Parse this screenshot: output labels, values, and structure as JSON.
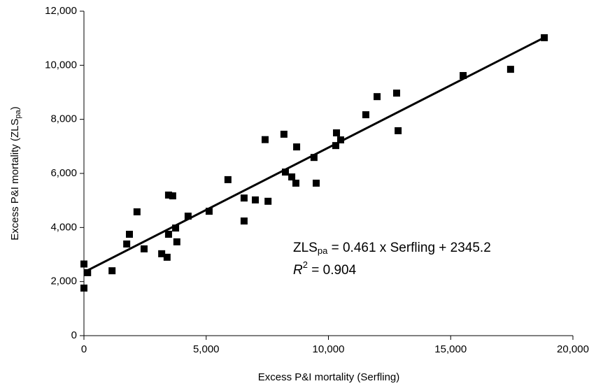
{
  "chart_data": {
    "type": "scatter",
    "x_label": "Excess P&I mortality (Serfling)",
    "y_label": {
      "main": "Excess P&I mortality (ZLS",
      "sub": "pa",
      "end": ")"
    },
    "x": [
      0,
      0,
      150,
      1150,
      1750,
      1860,
      2170,
      2460,
      3180,
      3400,
      3460,
      3460,
      3630,
      3750,
      3800,
      4260,
      5120,
      5890,
      6550,
      6550,
      7010,
      7410,
      7530,
      8180,
      8240,
      8500,
      8700,
      8670,
      9410,
      9500,
      10300,
      10330,
      10500,
      11530,
      11990,
      12790,
      12850,
      15510,
      17450,
      18830
    ],
    "values": [
      2650,
      1760,
      2330,
      2400,
      3390,
      3750,
      4580,
      3210,
      3030,
      2900,
      3750,
      5200,
      5170,
      3980,
      3470,
      4420,
      4600,
      5770,
      5090,
      4240,
      5020,
      7250,
      4970,
      7450,
      6050,
      5870,
      6980,
      5640,
      6590,
      5640,
      7030,
      7500,
      7240,
      8170,
      8840,
      8970,
      7580,
      9620,
      9850,
      11020
    ],
    "color": "#000000",
    "trendline": {
      "slope": 0.461,
      "intercept": 2345.2
    },
    "equation": {
      "lhs": "ZLS",
      "sub": "pa",
      "rhs": " = 0.461 x Serfling + 2345.2"
    },
    "r_squared": {
      "lhs": "R",
      "sup": "2",
      "rhs": " = 0.904"
    },
    "xlim": [
      0,
      20000
    ],
    "ylim": [
      0,
      12000
    ],
    "xticks": [
      {
        "value": 0,
        "label": "0"
      },
      {
        "value": 5000,
        "label": "5,000"
      },
      {
        "value": 10000,
        "label": "10,000"
      },
      {
        "value": 15000,
        "label": "15,000"
      },
      {
        "value": 20000,
        "label": "20,000"
      }
    ],
    "yticks": [
      {
        "value": 0,
        "label": "0"
      },
      {
        "value": 2000,
        "label": "2,000"
      },
      {
        "value": 4000,
        "label": "4,000"
      },
      {
        "value": 6000,
        "label": "6,000"
      },
      {
        "value": 8000,
        "label": "8,000"
      },
      {
        "value": 10000,
        "label": "10,000"
      },
      {
        "value": 12000,
        "label": "12,000"
      }
    ],
    "grid": false
  }
}
